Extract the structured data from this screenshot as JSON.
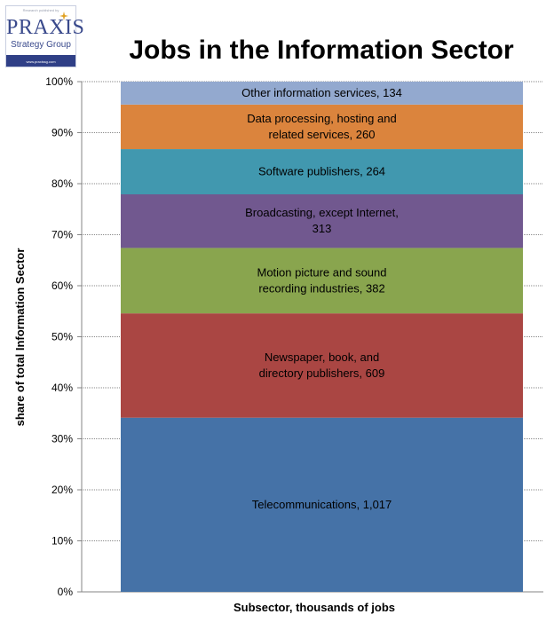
{
  "logo": {
    "tagline": "Research published by",
    "wordmark": "PRAXIS",
    "subtitle": "Strategy Group",
    "url": "www.praxissg.com"
  },
  "chart_data": {
    "type": "bar",
    "stacked": true,
    "normalized": true,
    "title": "Jobs in the Information Sector",
    "xlabel": "Subsector, thousands of jobs",
    "ylabel": "share of total Information Sector",
    "ylim": [
      0,
      100
    ],
    "yticks": [
      "0%",
      "10%",
      "20%",
      "30%",
      "40%",
      "50%",
      "60%",
      "70%",
      "80%",
      "90%",
      "100%"
    ],
    "grid": true,
    "series": [
      {
        "name": "Telecommunications",
        "value": 1017,
        "label": [
          "Telecommunications, 1,017"
        ],
        "color": "#4572a7"
      },
      {
        "name": "Newspaper, book, and directory publishers",
        "value": 609,
        "label": [
          "Newspaper, book, and",
          "directory publishers, 609"
        ],
        "color": "#aa4643"
      },
      {
        "name": "Motion picture and sound recording industries",
        "value": 382,
        "label": [
          "Motion picture and sound",
          "recording industries, 382"
        ],
        "color": "#89a54e"
      },
      {
        "name": "Broadcasting, except Internet",
        "value": 313,
        "label": [
          "Broadcasting, except Internet,",
          "313"
        ],
        "color": "#71588f"
      },
      {
        "name": "Software publishers",
        "value": 264,
        "label": [
          "Software publishers, 264"
        ],
        "color": "#4198af"
      },
      {
        "name": "Data processing, hosting and related services",
        "value": 260,
        "label": [
          "Data processing, hosting and",
          "related services, 260"
        ],
        "color": "#db843d"
      },
      {
        "name": "Other information services",
        "value": 134,
        "label": [
          "Other information services, 134"
        ],
        "color": "#93a9cf"
      }
    ]
  }
}
